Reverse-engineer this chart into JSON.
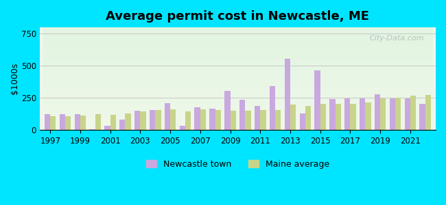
{
  "title": "Average permit cost in Newcastle, ME",
  "ylabel": "$1000s",
  "background_outer": "#00e5ff",
  "background_inner_top": "#e8f5e9",
  "background_inner_bottom": "#f5ffe8",
  "newcastle_color": "#c9a8e0",
  "maine_color": "#c8d48a",
  "years": [
    1997,
    1998,
    1999,
    2000,
    2001,
    2002,
    2003,
    2004,
    2005,
    2006,
    2007,
    2008,
    2009,
    2010,
    2011,
    2012,
    2013,
    2014,
    2015,
    2016,
    2017,
    2018,
    2019,
    2020,
    2021,
    2022
  ],
  "newcastle": [
    120,
    120,
    120,
    5,
    30,
    80,
    150,
    155,
    210,
    30,
    175,
    165,
    305,
    235,
    185,
    340,
    555,
    130,
    465,
    240,
    245,
    245,
    275,
    245,
    245,
    200
  ],
  "maine": [
    105,
    105,
    110,
    120,
    115,
    130,
    145,
    155,
    160,
    145,
    160,
    155,
    150,
    150,
    155,
    155,
    195,
    185,
    205,
    205,
    205,
    215,
    245,
    250,
    265,
    270
  ],
  "ylim": [
    0,
    800
  ],
  "yticks": [
    0,
    250,
    500,
    750
  ],
  "xtick_years": [
    1997,
    1999,
    2001,
    2003,
    2005,
    2007,
    2009,
    2011,
    2013,
    2015,
    2017,
    2019,
    2021
  ],
  "grid_color": "#cccccc",
  "watermark": "City-Data.com"
}
